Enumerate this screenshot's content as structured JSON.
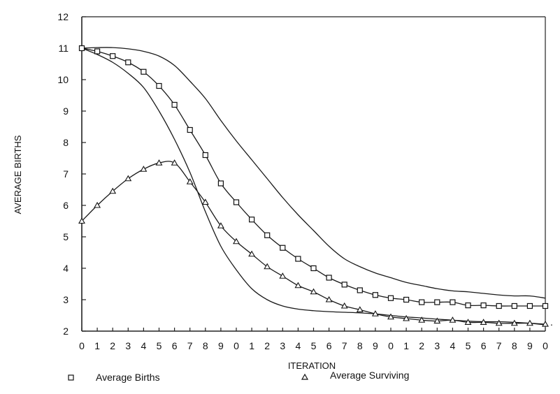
{
  "chart_data": {
    "type": "line",
    "title": "",
    "xlabel": "ITERATION",
    "ylabel": "AVERAGE BIRTHS",
    "ylim": [
      2,
      12
    ],
    "xlim": [
      0,
      30
    ],
    "x_tick_labels": [
      "0",
      "1",
      "2",
      "3",
      "4",
      "5",
      "6",
      "7",
      "8",
      "9",
      "0",
      "1",
      "2",
      "3",
      "4",
      "5",
      "6",
      "7",
      "8",
      "9",
      "0",
      "1",
      "2",
      "3",
      "4",
      "5",
      "6",
      "7",
      "8",
      "9",
      "0"
    ],
    "y_ticks": [
      2,
      3,
      4,
      5,
      6,
      7,
      8,
      9,
      10,
      11,
      12
    ],
    "grid": false,
    "legend_position": "bottom",
    "series": [
      {
        "name": "Average Births",
        "marker": "square",
        "values": [
          11.0,
          10.9,
          10.75,
          10.55,
          10.25,
          9.8,
          9.2,
          8.4,
          7.6,
          6.7,
          6.1,
          5.55,
          5.05,
          4.65,
          4.3,
          4.0,
          3.7,
          3.48,
          3.3,
          3.15,
          3.05,
          3.0,
          2.92,
          2.92,
          2.92,
          2.82,
          2.82,
          2.8,
          2.8,
          2.8,
          2.8
        ]
      },
      {
        "name": "Average Surviving",
        "marker": "triangle",
        "values": [
          5.5,
          6.0,
          6.45,
          6.85,
          7.15,
          7.35,
          7.35,
          6.75,
          6.1,
          5.35,
          4.85,
          4.45,
          4.05,
          3.75,
          3.45,
          3.25,
          3.0,
          2.8,
          2.68,
          2.55,
          2.45,
          2.4,
          2.35,
          2.32,
          2.35,
          2.28,
          2.28,
          2.25,
          2.25,
          2.25,
          2.22
        ]
      },
      {
        "name": "",
        "marker": "none",
        "values": [
          11.0,
          11.02,
          11.02,
          10.98,
          10.9,
          10.75,
          10.45,
          9.95,
          9.4,
          8.7,
          8.05,
          7.45,
          6.85,
          6.25,
          5.7,
          5.2,
          4.7,
          4.3,
          4.05,
          3.85,
          3.7,
          3.55,
          3.45,
          3.35,
          3.28,
          3.25,
          3.2,
          3.15,
          3.12,
          3.12,
          3.05
        ]
      },
      {
        "name": "",
        "marker": "none",
        "values": [
          11.0,
          10.8,
          10.55,
          10.2,
          9.75,
          9.0,
          8.1,
          7.05,
          5.8,
          4.7,
          3.95,
          3.35,
          3.0,
          2.8,
          2.7,
          2.65,
          2.62,
          2.6,
          2.58,
          2.55,
          2.5,
          2.45,
          2.42,
          2.38,
          2.35,
          2.32,
          2.3,
          2.3,
          2.28,
          2.25,
          2.2
        ]
      }
    ],
    "stray_mark": "."
  }
}
